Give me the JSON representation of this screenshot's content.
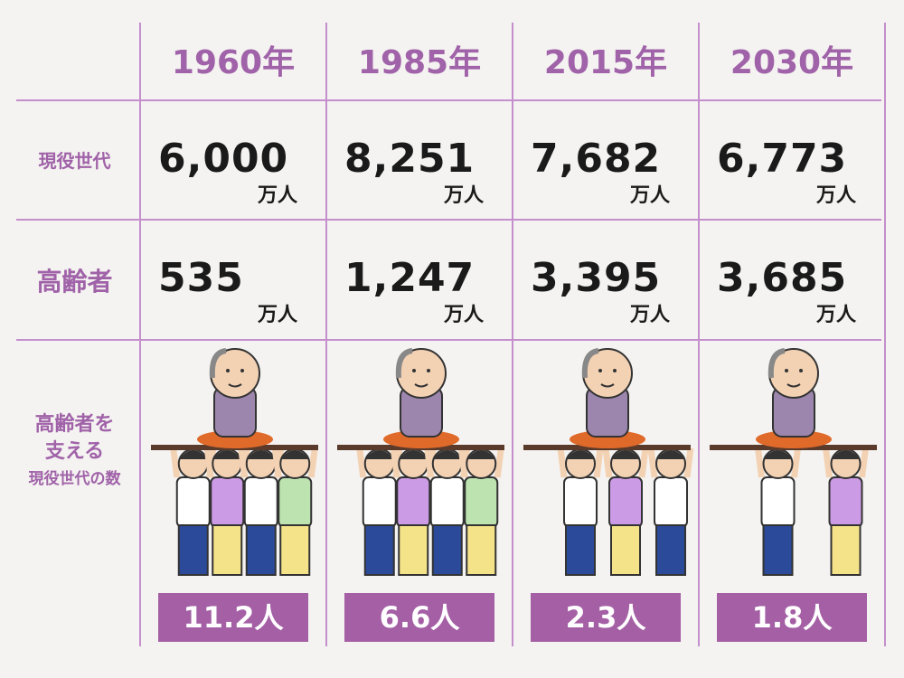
{
  "table": {
    "columns": [
      "1960年",
      "1985年",
      "2015年",
      "2030年"
    ],
    "unit": "万人",
    "rows": [
      {
        "label": "現役世代",
        "cells": [
          "6,000",
          "8,251",
          "7,682",
          "6,773"
        ]
      },
      {
        "label": "高齢者",
        "cells": [
          "535",
          "1,247",
          "3,395",
          "3,685"
        ]
      }
    ],
    "support": {
      "label_lines": [
        "高齢者を",
        "支える",
        "現役世代の数"
      ],
      "cells": [
        "11.2人",
        "6.6人",
        "2.3人",
        "1.8人"
      ]
    }
  }
}
